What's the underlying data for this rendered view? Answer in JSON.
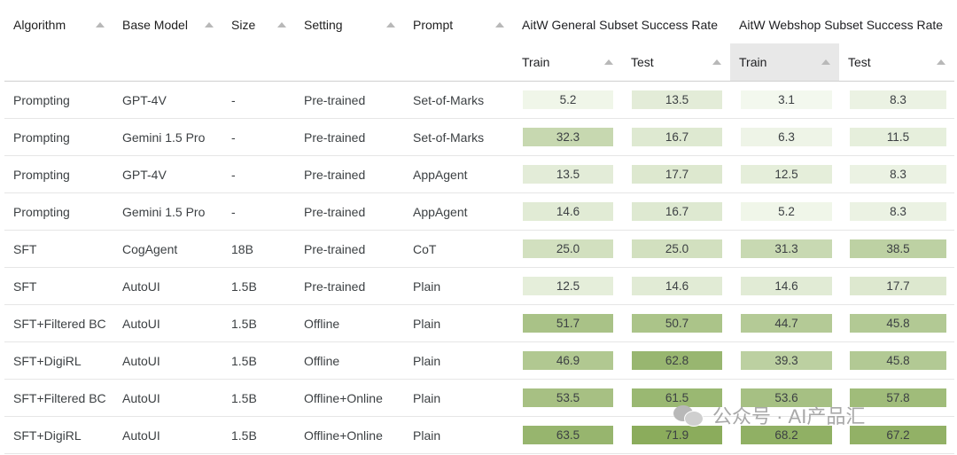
{
  "headers": {
    "algorithm": "Algorithm",
    "base_model": "Base Model",
    "size": "Size",
    "setting": "Setting",
    "prompt": "Prompt",
    "group_general": "AitW General Subset Success Rate",
    "group_webshop": "AitW Webshop Subset Success Rate",
    "general_train": "Train",
    "general_test": "Test",
    "webshop_train": "Train",
    "webshop_test": "Test"
  },
  "rows": [
    {
      "algorithm": "Prompting",
      "base_model": "GPT-4V",
      "size": "-",
      "setting": "Pre-trained",
      "prompt": "Set-of-Marks",
      "general_train": "5.2",
      "general_test": "13.5",
      "webshop_train": "3.1",
      "webshop_test": "8.3"
    },
    {
      "algorithm": "Prompting",
      "base_model": "Gemini 1.5 Pro",
      "size": "-",
      "setting": "Pre-trained",
      "prompt": "Set-of-Marks",
      "general_train": "32.3",
      "general_test": "16.7",
      "webshop_train": "6.3",
      "webshop_test": "11.5"
    },
    {
      "algorithm": "Prompting",
      "base_model": "GPT-4V",
      "size": "-",
      "setting": "Pre-trained",
      "prompt": "AppAgent",
      "general_train": "13.5",
      "general_test": "17.7",
      "webshop_train": "12.5",
      "webshop_test": "8.3"
    },
    {
      "algorithm": "Prompting",
      "base_model": "Gemini 1.5 Pro",
      "size": "-",
      "setting": "Pre-trained",
      "prompt": "AppAgent",
      "general_train": "14.6",
      "general_test": "16.7",
      "webshop_train": "5.2",
      "webshop_test": "8.3"
    },
    {
      "algorithm": "SFT",
      "base_model": "CogAgent",
      "size": "18B",
      "setting": "Pre-trained",
      "prompt": "CoT",
      "general_train": "25.0",
      "general_test": "25.0",
      "webshop_train": "31.3",
      "webshop_test": "38.5"
    },
    {
      "algorithm": "SFT",
      "base_model": "AutoUI",
      "size": "1.5B",
      "setting": "Pre-trained",
      "prompt": "Plain",
      "general_train": "12.5",
      "general_test": "14.6",
      "webshop_train": "14.6",
      "webshop_test": "17.7"
    },
    {
      "algorithm": "SFT+Filtered BC",
      "base_model": "AutoUI",
      "size": "1.5B",
      "setting": "Offline",
      "prompt": "Plain",
      "general_train": "51.7",
      "general_test": "50.7",
      "webshop_train": "44.7",
      "webshop_test": "45.8"
    },
    {
      "algorithm": "SFT+DigiRL",
      "base_model": "AutoUI",
      "size": "1.5B",
      "setting": "Offline",
      "prompt": "Plain",
      "general_train": "46.9",
      "general_test": "62.8",
      "webshop_train": "39.3",
      "webshop_test": "45.8"
    },
    {
      "algorithm": "SFT+Filtered BC",
      "base_model": "AutoUI",
      "size": "1.5B",
      "setting": "Offline+Online",
      "prompt": "Plain",
      "general_train": "53.5",
      "general_test": "61.5",
      "webshop_train": "53.6",
      "webshop_test": "57.8"
    },
    {
      "algorithm": "SFT+DigiRL",
      "base_model": "AutoUI",
      "size": "1.5B",
      "setting": "Offline+Online",
      "prompt": "Plain",
      "general_train": "63.5",
      "general_test": "71.9",
      "webshop_train": "68.2",
      "webshop_test": "67.2"
    }
  ],
  "watermark": "公众号 · AI产品汇",
  "colors": {
    "low": "#f3f8ee",
    "high": "#89ab5a"
  }
}
